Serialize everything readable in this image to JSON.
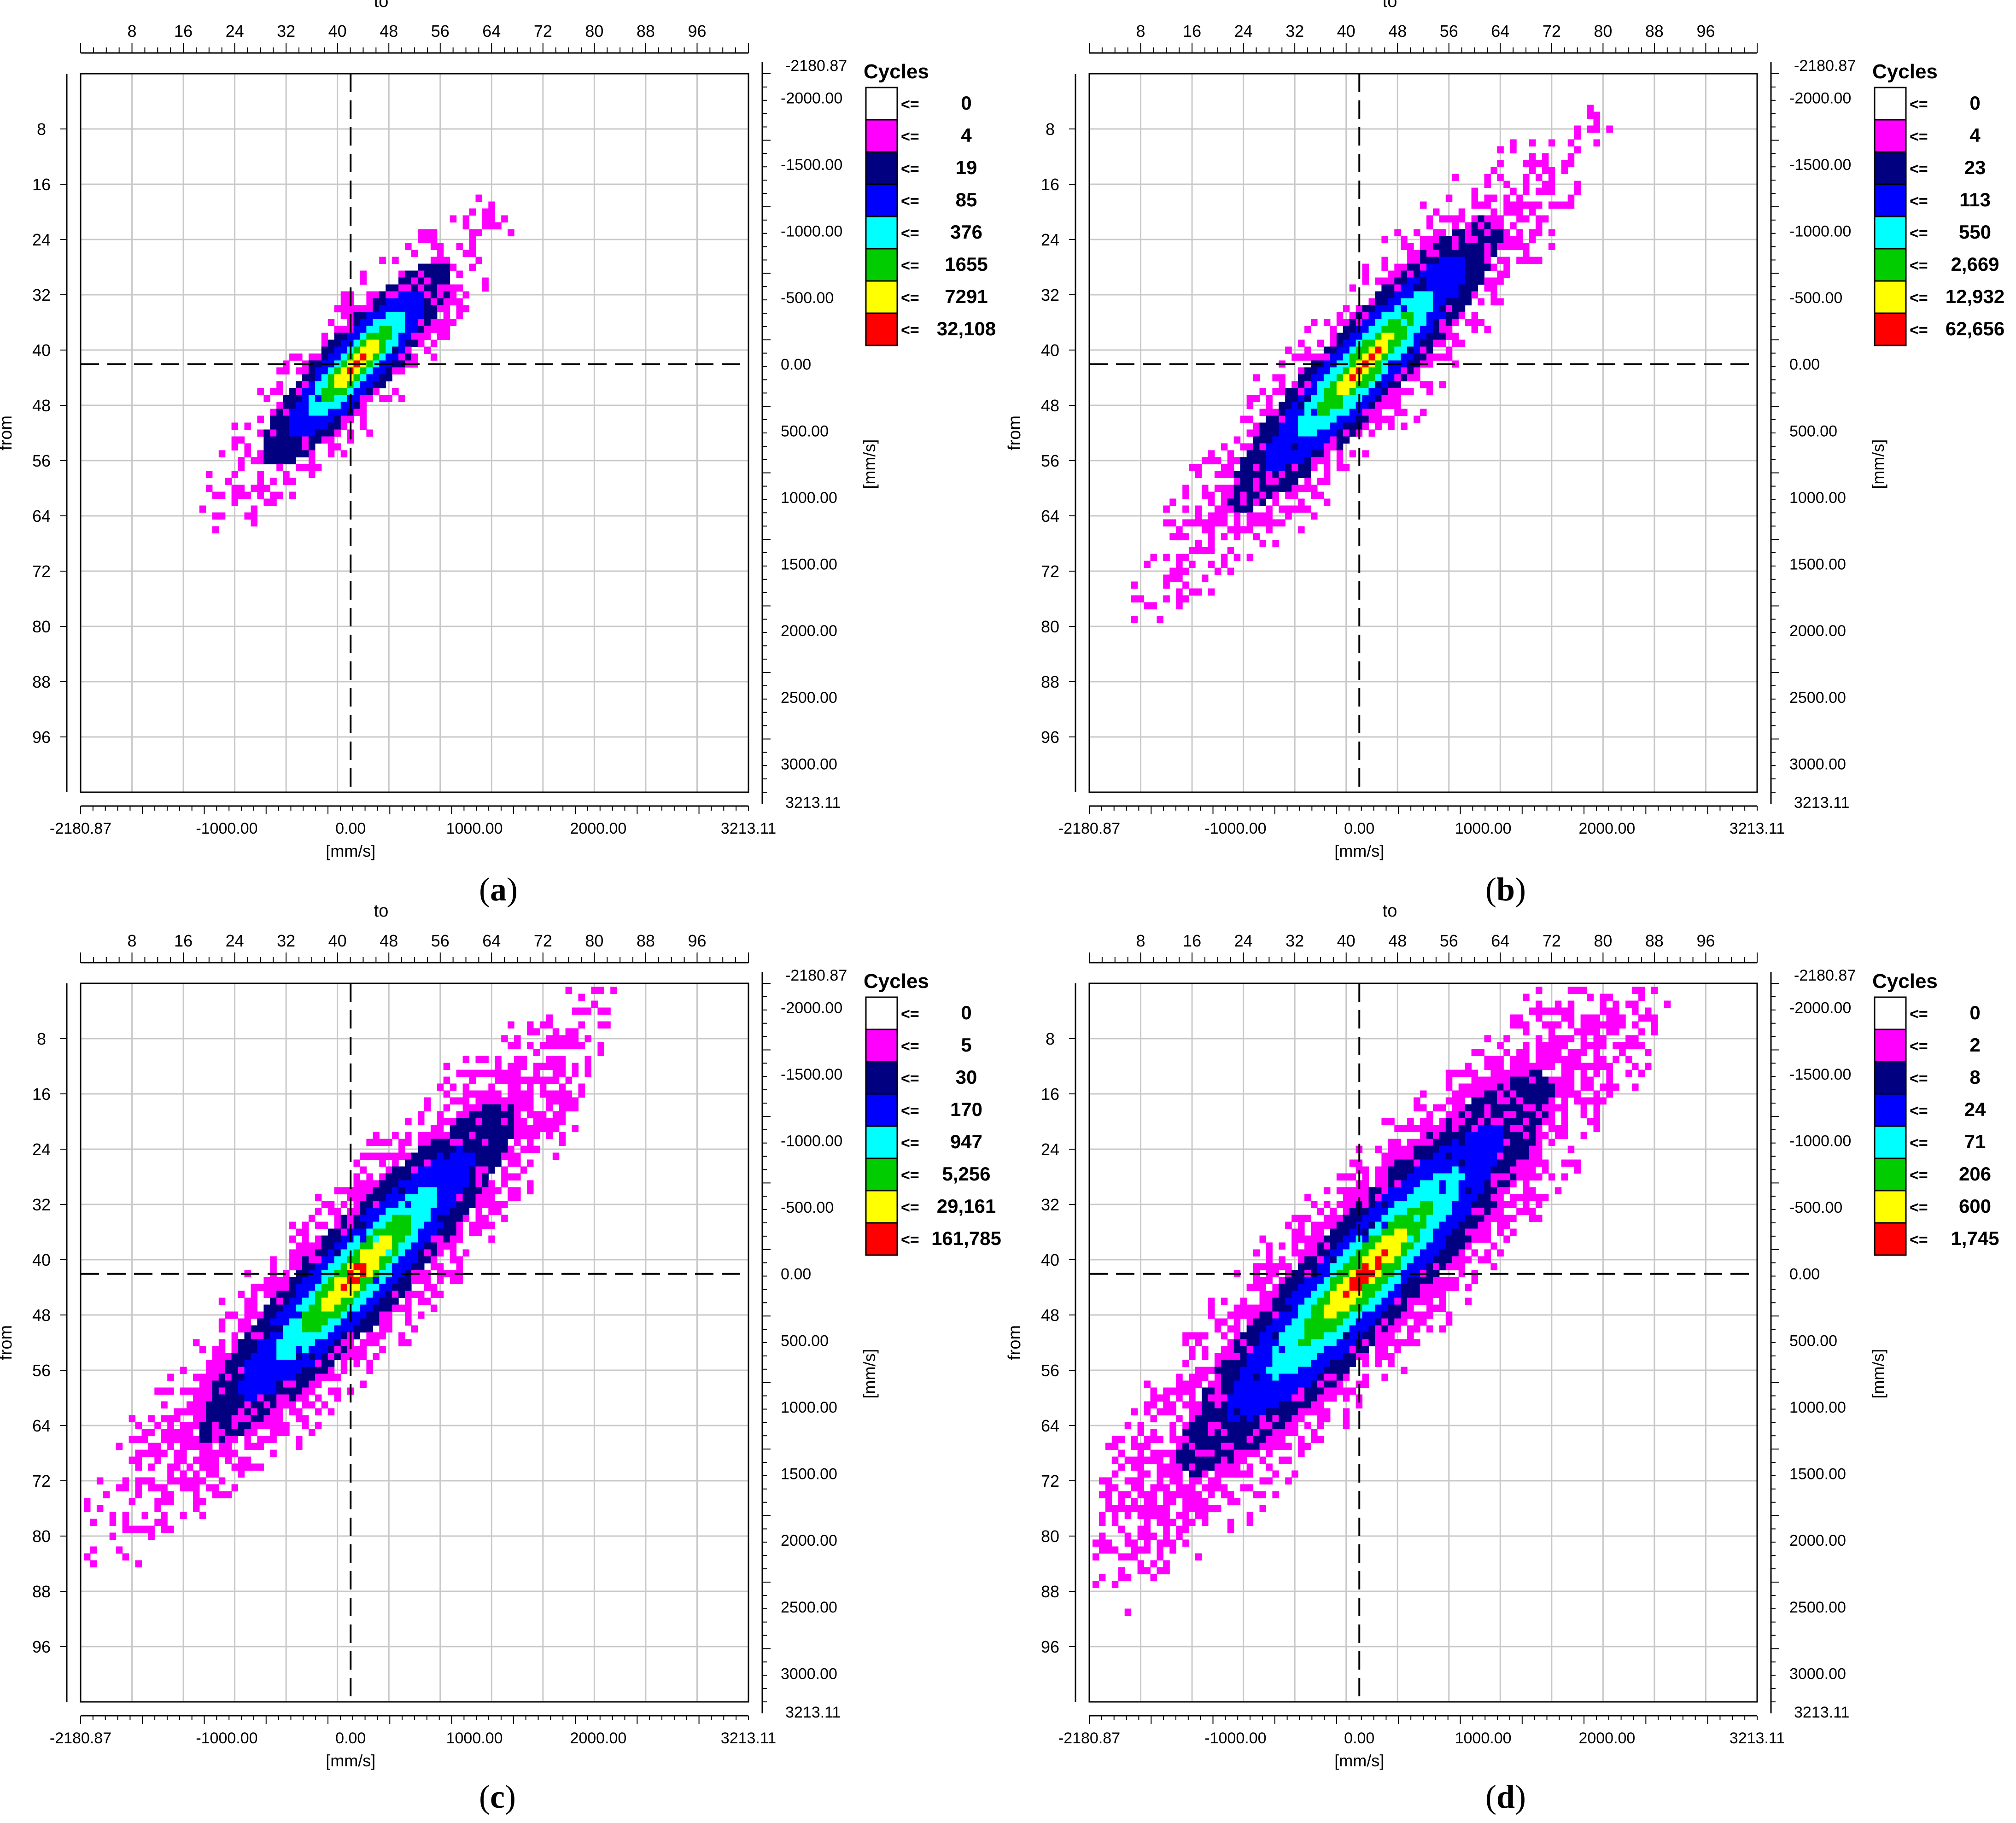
{
  "panels": [
    {
      "label_open": "(",
      "label_letter": "a",
      "label_close": ")"
    },
    {
      "label_open": "(",
      "label_letter": "b",
      "label_close": ")"
    },
    {
      "label_open": "(",
      "label_letter": "c",
      "label_close": ")"
    },
    {
      "label_open": "(",
      "label_letter": "d",
      "label_close": ")"
    }
  ],
  "chart_data": [
    {
      "type": "heatmap",
      "top_axis_title": "to",
      "left_axis_title": "from",
      "bottom_axis_unit": "[mm/s]",
      "right_axis_unit": "[mm/s]",
      "bin_ticks": [
        8,
        16,
        24,
        32,
        40,
        48,
        56,
        64,
        72,
        80,
        88,
        96
      ],
      "bottom_tick_labels": [
        "-2180.87",
        "-1000.00",
        "0.00",
        "1000.00",
        "2000.00",
        "3213.11"
      ],
      "right_tick_labels": [
        "-2180.87",
        "-2000.00",
        "-1500.00",
        "-1000.00",
        "-500.00",
        "0.00",
        "500.00",
        "1000.00",
        "1500.00",
        "2000.00",
        "2500.00",
        "3000.00",
        "3213.11"
      ],
      "velocity_range": [
        -2180.87,
        3213.11
      ],
      "legend_title": "Cycles",
      "legend_prefix": "<=",
      "legend_colors": [
        "#ffffff",
        "#ff00ff",
        "#000080",
        "#0000ff",
        "#00ffff",
        "#00cc00",
        "#ffff00",
        "#ff0000"
      ],
      "legend_levels": [
        "0",
        "4",
        "19",
        "85",
        "376",
        "1655",
        "7291",
        "32,108"
      ],
      "center": [
        43,
        42
      ],
      "spread": {
        "major": 13,
        "minor": 3.4,
        "extent": 0.85
      },
      "density": 0.55,
      "seed": 11
    },
    {
      "type": "heatmap",
      "top_axis_title": "to",
      "left_axis_title": "from",
      "bottom_axis_unit": "[mm/s]",
      "right_axis_unit": "[mm/s]",
      "bin_ticks": [
        8,
        16,
        24,
        32,
        40,
        48,
        56,
        64,
        72,
        80,
        88,
        96
      ],
      "bottom_tick_labels": [
        "-2180.87",
        "-1000.00",
        "0.00",
        "1000.00",
        "2000.00",
        "3213.11"
      ],
      "right_tick_labels": [
        "-2180.87",
        "-2000.00",
        "-1500.00",
        "-1000.00",
        "-500.00",
        "0.00",
        "500.00",
        "1000.00",
        "1500.00",
        "2000.00",
        "2500.00",
        "3000.00",
        "3213.11"
      ],
      "velocity_range": [
        -2180.87,
        3213.11
      ],
      "legend_title": "Cycles",
      "legend_prefix": "<=",
      "legend_colors": [
        "#ffffff",
        "#ff00ff",
        "#000080",
        "#0000ff",
        "#00ffff",
        "#00cc00",
        "#ffff00",
        "#ff0000"
      ],
      "legend_levels": [
        "0",
        "4",
        "23",
        "113",
        "550",
        "2,669",
        "12,932",
        "62,656"
      ],
      "center": [
        43,
        42
      ],
      "spread": {
        "major": 19,
        "minor": 4.0,
        "extent": 1.0
      },
      "density": 0.65,
      "seed": 23
    },
    {
      "type": "heatmap",
      "top_axis_title": "to",
      "left_axis_title": "from",
      "bottom_axis_unit": "[mm/s]",
      "right_axis_unit": "[mm/s]",
      "bin_ticks": [
        8,
        16,
        24,
        32,
        40,
        48,
        56,
        64,
        72,
        80,
        88,
        96
      ],
      "bottom_tick_labels": [
        "-2180.87",
        "-1000.00",
        "0.00",
        "1000.00",
        "2000.00",
        "3213.11"
      ],
      "right_tick_labels": [
        "-2180.87",
        "-2000.00",
        "-1500.00",
        "-1000.00",
        "-500.00",
        "0.00",
        "500.00",
        "1000.00",
        "1500.00",
        "2000.00",
        "2500.00",
        "3000.00",
        "3213.11"
      ],
      "velocity_range": [
        -2180.87,
        3213.11
      ],
      "legend_title": "Cycles",
      "legend_prefix": "<=",
      "legend_colors": [
        "#ffffff",
        "#ff00ff",
        "#000080",
        "#0000ff",
        "#00ffff",
        "#00cc00",
        "#ffff00",
        "#ff0000"
      ],
      "legend_levels": [
        "0",
        "5",
        "30",
        "170",
        "947",
        "5,256",
        "29,161",
        "161,785"
      ],
      "center": [
        43,
        42
      ],
      "spread": {
        "major": 22,
        "minor": 4.6,
        "extent": 1.0
      },
      "density": 0.8,
      "seed": 37
    },
    {
      "type": "heatmap",
      "top_axis_title": "to",
      "left_axis_title": "from",
      "bottom_axis_unit": "[mm/s]",
      "right_axis_unit": "[mm/s]",
      "bin_ticks": [
        8,
        16,
        24,
        32,
        40,
        48,
        56,
        64,
        72,
        80,
        88,
        96
      ],
      "bottom_tick_labels": [
        "-2180.87",
        "-1000.00",
        "0.00",
        "1000.00",
        "2000.00",
        "3213.11"
      ],
      "right_tick_labels": [
        "-2180.87",
        "-2000.00",
        "-1500.00",
        "-1000.00",
        "-500.00",
        "0.00",
        "500.00",
        "1000.00",
        "1500.00",
        "2000.00",
        "2500.00",
        "3000.00",
        "3213.11"
      ],
      "velocity_range": [
        -2180.87,
        3213.11
      ],
      "legend_title": "Cycles",
      "legend_prefix": "<=",
      "legend_colors": [
        "#ffffff",
        "#ff00ff",
        "#000080",
        "#0000ff",
        "#00ffff",
        "#00cc00",
        "#ffff00",
        "#ff0000"
      ],
      "legend_levels": [
        "0",
        "2",
        "8",
        "24",
        "71",
        "206",
        "600",
        "1,745"
      ],
      "center": [
        43,
        42
      ],
      "spread": {
        "major": 26,
        "minor": 5.4,
        "extent": 1.0
      },
      "density": 0.85,
      "seed": 51
    }
  ]
}
